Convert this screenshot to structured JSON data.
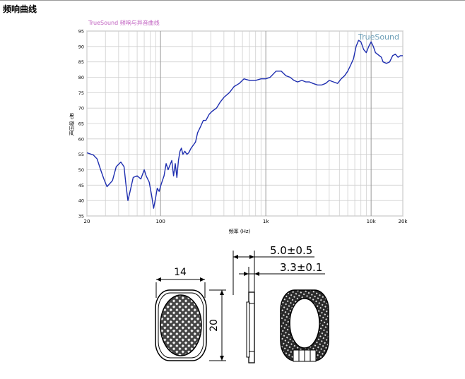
{
  "page": {
    "heading": "频响曲线"
  },
  "chart_data": {
    "type": "line",
    "title": "TrueSound 频响与异音曲线",
    "watermark": "TrueSound",
    "xlabel": "频率 (Hz)",
    "ylabel": "声压级 dB",
    "xscale": "log",
    "xlim": [
      20,
      20000
    ],
    "ylim": [
      35,
      95
    ],
    "grid": true,
    "x_tick_labels": [
      {
        "v": 20,
        "t": "20"
      },
      {
        "v": 100,
        "t": "100"
      },
      {
        "v": 1000,
        "t": "1k"
      },
      {
        "v": 10000,
        "t": "10k"
      },
      {
        "v": 20000,
        "t": "20k"
      }
    ],
    "y_ticks": [
      35,
      40,
      45,
      50,
      55,
      60,
      65,
      70,
      75,
      80,
      85,
      90,
      95
    ],
    "colors": {
      "line": "#1f2fb0",
      "title": "#c060c0",
      "watermark": "#6fa0b8",
      "grid": "#cfcfcf"
    },
    "series": [
      {
        "x": [
          20,
          23,
          25,
          27,
          29,
          31,
          35,
          38,
          42,
          45,
          47,
          49,
          51,
          55,
          60,
          65,
          70,
          73,
          78,
          82,
          86,
          90,
          93,
          97,
          102,
          108,
          113,
          118,
          123,
          128,
          133,
          138,
          143,
          148,
          153,
          158,
          163,
          170,
          178,
          185,
          195,
          205,
          215,
          225,
          240,
          255,
          270,
          290,
          310,
          340,
          370,
          400,
          450,
          500,
          560,
          620,
          700,
          800,
          900,
          1000,
          1100,
          1250,
          1400,
          1550,
          1700,
          1850,
          2000,
          2200,
          2400,
          2600,
          2800,
          3100,
          3400,
          3700,
          4000,
          4400,
          4800,
          5200,
          5600,
          6000,
          6400,
          6800,
          7200,
          7600,
          8000,
          8500,
          9000,
          9500,
          10000,
          10500,
          11000,
          11500,
          12000,
          12500,
          13000,
          14000,
          15000,
          16000,
          17000,
          18000,
          19000,
          20000
        ],
        "y": [
          55.5,
          54.8,
          53.5,
          50,
          47,
          44.5,
          46.5,
          51,
          52.5,
          51,
          45,
          40,
          42.5,
          47.5,
          48,
          47,
          50,
          48,
          46,
          42,
          37.5,
          41,
          44,
          43,
          45.5,
          48,
          52,
          50,
          51.5,
          53,
          48,
          52,
          47.5,
          53,
          56,
          57,
          55,
          56,
          55,
          55.5,
          57,
          58,
          59,
          62,
          64,
          66,
          66,
          68,
          69,
          70,
          72,
          73.5,
          75,
          77,
          78,
          79.5,
          79,
          79,
          79.5,
          79.5,
          80,
          82,
          82,
          80.5,
          80,
          79,
          78.5,
          79,
          78.5,
          78.5,
          78,
          77.5,
          77.5,
          78,
          79,
          78.5,
          78,
          79.5,
          80.5,
          82,
          84,
          86,
          90,
          92,
          91.5,
          89,
          88,
          90,
          91.5,
          90,
          88,
          87.5,
          87,
          86.5,
          85,
          84.5,
          85,
          87,
          87.5,
          86.5,
          87,
          87
        ]
      }
    ]
  },
  "drawing": {
    "width_dim": "14",
    "height_dim": "20",
    "depth_total_dim": "5.0±0.5",
    "depth_body_dim": "3.3±0.1"
  }
}
